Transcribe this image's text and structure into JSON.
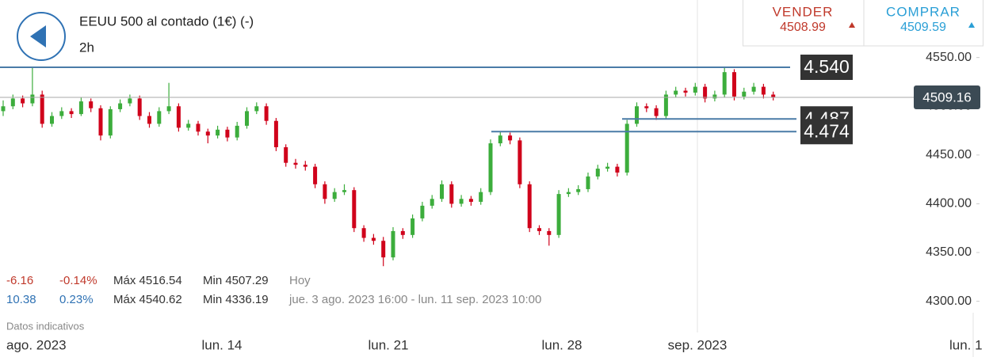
{
  "chart_data": {
    "type": "candlestick",
    "title": "EEUU 500 al contado (1€) (-)",
    "subtitle": "2h",
    "up_color": "#3cad3c",
    "down_color": "#d0021b",
    "open": [
      4495,
      4500,
      4508,
      4503,
      4512,
      4482,
      4490,
      4495,
      4492,
      4505,
      4498,
      4470,
      4497,
      4503,
      4508,
      4490,
      4482,
      4495,
      4500,
      4478,
      4482,
      4474,
      4470,
      4476,
      4468,
      4480,
      4495,
      4500,
      4485,
      4458,
      4442,
      4440,
      4438,
      4420,
      4405,
      4412,
      4414,
      4375,
      4365,
      4362,
      4345,
      4372,
      4368,
      4385,
      4398,
      4405,
      4420,
      4400,
      4405,
      4402,
      4412,
      4462,
      4470,
      4465,
      4420,
      4375,
      4372,
      4368,
      4410,
      4412,
      4415,
      4428,
      4436,
      4438,
      4432,
      4482,
      4500,
      4498,
      4490,
      4512,
      4516,
      4514,
      4520,
      4508,
      4512,
      4535,
      4510,
      4515,
      4520,
      4512
    ],
    "high": [
      4506,
      4512,
      4511,
      4540,
      4516,
      4494,
      4499,
      4498,
      4509,
      4508,
      4501,
      4500,
      4507,
      4512,
      4511,
      4494,
      4499,
      4524,
      4503,
      4486,
      4485,
      4477,
      4480,
      4479,
      4484,
      4499,
      4504,
      4503,
      4488,
      4461,
      4446,
      4444,
      4441,
      4423,
      4416,
      4420,
      4417,
      4378,
      4369,
      4366,
      4376,
      4375,
      4389,
      4402,
      4409,
      4424,
      4423,
      4409,
      4408,
      4416,
      4466,
      4474,
      4473,
      4468,
      4423,
      4378,
      4375,
      4414,
      4416,
      4419,
      4432,
      4440,
      4442,
      4441,
      4486,
      4504,
      4503,
      4501,
      4516,
      4520,
      4519,
      4524,
      4523,
      4516,
      4540,
      4538,
      4519,
      4524,
      4523,
      4515
    ],
    "low": [
      4490,
      4497,
      4499,
      4500,
      4478,
      4479,
      4487,
      4488,
      4490,
      4494,
      4465,
      4467,
      4494,
      4500,
      4486,
      4478,
      4479,
      4492,
      4474,
      4475,
      4470,
      4462,
      4467,
      4464,
      4465,
      4477,
      4492,
      4481,
      4454,
      4438,
      4436,
      4434,
      4416,
      4400,
      4402,
      4409,
      4371,
      4361,
      4358,
      4336,
      4342,
      4364,
      4365,
      4382,
      4395,
      4402,
      4396,
      4397,
      4398,
      4399,
      4409,
      4459,
      4461,
      4416,
      4371,
      4368,
      4357,
      4365,
      4407,
      4409,
      4412,
      4425,
      4433,
      4428,
      4429,
      4479,
      4494,
      4486,
      4487,
      4509,
      4510,
      4511,
      4504,
      4505,
      4509,
      4506,
      4507,
      4512,
      4508,
      4506
    ],
    "close": [
      4500,
      4508,
      4503,
      4512,
      4482,
      4490,
      4495,
      4492,
      4505,
      4498,
      4470,
      4497,
      4503,
      4508,
      4490,
      4482,
      4495,
      4500,
      4478,
      4482,
      4474,
      4470,
      4476,
      4468,
      4480,
      4495,
      4500,
      4485,
      4458,
      4442,
      4440,
      4438,
      4420,
      4405,
      4412,
      4414,
      4375,
      4365,
      4362,
      4345,
      4372,
      4368,
      4385,
      4398,
      4405,
      4420,
      4400,
      4405,
      4402,
      4412,
      4462,
      4470,
      4465,
      4420,
      4375,
      4372,
      4368,
      4410,
      4412,
      4415,
      4428,
      4436,
      4438,
      4432,
      4482,
      4500,
      4498,
      4490,
      4512,
      4516,
      4514,
      4520,
      4508,
      4512,
      4535,
      4510,
      4515,
      4520,
      4512,
      4509
    ],
    "ylim": [
      4268,
      4609
    ],
    "yticks": [
      {
        "value": 4300,
        "label": "4300.00"
      },
      {
        "value": 4350,
        "label": "4350.00"
      },
      {
        "value": 4400,
        "label": "4400.00"
      },
      {
        "value": 4450,
        "label": "4450.00"
      },
      {
        "value": 4500,
        "label": "4500.00"
      },
      {
        "value": 4550,
        "label": "4550.00"
      }
    ],
    "xticks": [
      "ago. 2023",
      "lun. 14",
      "lun. 21",
      "lun. 28",
      "sep. 2023",
      "lun. 1"
    ],
    "levels": [
      {
        "value": 4540,
        "label": "4.540"
      },
      {
        "value": 4487,
        "label": "4.487"
      },
      {
        "value": 4474,
        "label": "4.474"
      }
    ],
    "current_price": 4509.16
  },
  "quote": {
    "sell_label": "VENDER",
    "sell_price": "4508.99",
    "buy_label": "COMPRAR",
    "buy_price": "4509.59"
  },
  "stats": [
    [
      "-6.16",
      "-0.14%",
      "Máx 4516.54",
      "Min 4507.29",
      "Hoy"
    ],
    [
      "10.38",
      "0.23%",
      "Máx 4540.62",
      "Min 4336.19",
      "jue. 3 ago. 2023 16:00 - lun. 11 sep. 2023 10:00"
    ]
  ],
  "footnote": "Datos indicativos"
}
